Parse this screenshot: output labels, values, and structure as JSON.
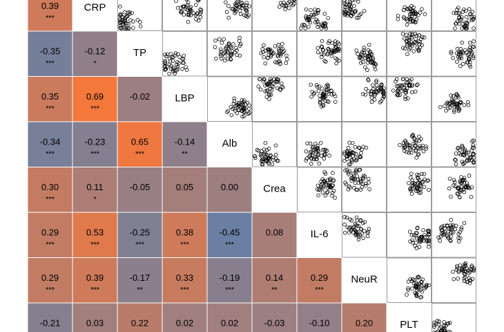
{
  "chart_data": {
    "type": "correlation-matrix",
    "colors": {
      "negative": "#4f7fb3",
      "zero": "#9e7f80",
      "positive": "#f4773c"
    },
    "rows": [
      {
        "variable": "CRP",
        "values": [
          0.39
        ],
        "value_labels": [
          "0.39"
        ],
        "stars": [
          "***"
        ]
      },
      {
        "variable": "TP",
        "values": [
          -0.35,
          -0.12
        ],
        "value_labels": [
          "-0.35",
          "-0.12"
        ],
        "stars": [
          "***",
          "*"
        ]
      },
      {
        "variable": "LBP",
        "values": [
          0.35,
          0.69,
          -0.02
        ],
        "value_labels": [
          "0.35",
          "0.69",
          "-0.02"
        ],
        "stars": [
          "***",
          "***",
          null
        ]
      },
      {
        "variable": "Alb",
        "values": [
          -0.34,
          -0.23,
          0.65,
          -0.14
        ],
        "value_labels": [
          "-0.34",
          "-0.23",
          "0.65",
          "-0.14"
        ],
        "stars": [
          "***",
          "***",
          "***",
          "**"
        ]
      },
      {
        "variable": "Crea",
        "values": [
          0.3,
          0.11,
          -0.05,
          0.05,
          0.0
        ],
        "value_labels": [
          "0.30",
          "0.11",
          "-0.05",
          "0.05",
          "0.00"
        ],
        "stars": [
          "***",
          "*",
          null,
          null,
          null
        ]
      },
      {
        "variable": "IL-6",
        "values": [
          0.29,
          0.53,
          -0.25,
          0.38,
          -0.45,
          0.08
        ],
        "value_labels": [
          "0.29",
          "0.53",
          "-0.25",
          "0.38",
          "-0.45",
          "0.08"
        ],
        "stars": [
          "***",
          "***",
          "***",
          "***",
          "***",
          null
        ]
      },
      {
        "variable": "NeuR",
        "values": [
          0.29,
          0.39,
          -0.17,
          0.33,
          -0.19,
          0.14,
          0.29
        ],
        "value_labels": [
          "0.29",
          "0.39",
          "-0.17",
          "0.33",
          "-0.19",
          "0.14",
          "0.29"
        ],
        "stars": [
          "***",
          "***",
          "**",
          "***",
          "***",
          "**",
          "***"
        ]
      },
      {
        "variable": "PLT",
        "values": [
          -0.21,
          0.03,
          0.22,
          0.02,
          0.02,
          -0.03,
          -0.1,
          0.2
        ],
        "value_labels": [
          "-0.21",
          "0.03",
          "0.22",
          "0.02",
          "0.02",
          "-0.03",
          "-0.10",
          "0.20"
        ]
      }
    ]
  }
}
